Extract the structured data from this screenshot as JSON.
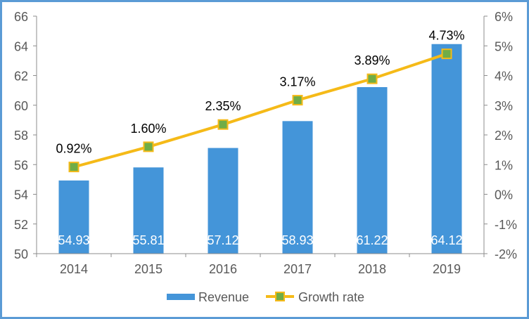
{
  "chart_data": {
    "type": "bar+line",
    "title": "",
    "categories": [
      "2014",
      "2015",
      "2016",
      "2017",
      "2018",
      "2019"
    ],
    "series": [
      {
        "name": "Revenue",
        "type": "bar",
        "axis": "left",
        "values": [
          54.93,
          55.81,
          57.12,
          58.93,
          61.22,
          64.12
        ],
        "labels": [
          "54.93",
          "55.81",
          "57.12",
          "58.93",
          "61.22",
          "64.12"
        ]
      },
      {
        "name": "Growth rate",
        "type": "line",
        "axis": "right",
        "values": [
          0.92,
          1.6,
          2.35,
          3.17,
          3.89,
          4.73
        ],
        "labels": [
          "0.92%",
          "1.60%",
          "2.35%",
          "3.17%",
          "3.89%",
          "4.73%"
        ]
      }
    ],
    "left_axis": {
      "ylim": [
        50,
        66
      ],
      "ticks": [
        "50",
        "52",
        "54",
        "56",
        "58",
        "60",
        "62",
        "64",
        "66"
      ]
    },
    "right_axis": {
      "ylim": [
        -2,
        6
      ],
      "ticks": [
        "-2%",
        "-1%",
        "0%",
        "1%",
        "2%",
        "3%",
        "4%",
        "5%",
        "6%"
      ]
    },
    "legend": {
      "placement": "bottom",
      "entries": [
        "Revenue",
        "Growth rate"
      ]
    },
    "grid": false,
    "colors": {
      "bar": "#4495D9",
      "line": "#F5BA18",
      "marker": "#70AD47",
      "border": "#5B9BD5",
      "axis_text": "#595959"
    }
  }
}
